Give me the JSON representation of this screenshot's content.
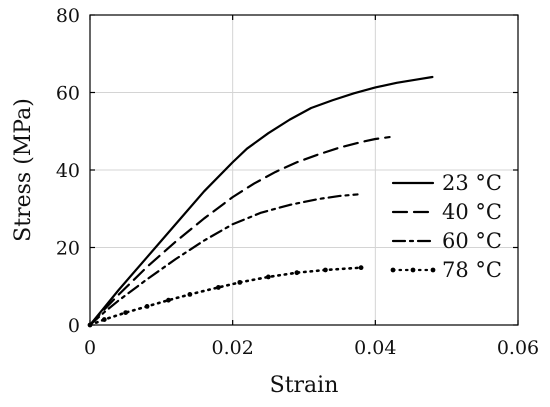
{
  "chart_data": {
    "type": "line",
    "title": "",
    "xlabel": "Strain",
    "ylabel": "Stress (MPa)",
    "xlim": [
      0,
      0.06
    ],
    "ylim": [
      0,
      80
    ],
    "xticks": [
      0,
      0.02,
      0.04,
      0.06
    ],
    "yticks": [
      0,
      20,
      40,
      60,
      80
    ],
    "xtick_labels": [
      "0",
      "0.02",
      "0.04",
      "0.06"
    ],
    "ytick_labels": [
      "0",
      "20",
      "40",
      "60",
      "80"
    ],
    "grid": true,
    "legend_position": "right",
    "series": [
      {
        "name": "23 °C",
        "style": "solid",
        "color": "#000000",
        "x": [
          0,
          0.002,
          0.004,
          0.008,
          0.012,
          0.016,
          0.02,
          0.022,
          0.025,
          0.028,
          0.031,
          0.034,
          0.037,
          0.04,
          0.043,
          0.046,
          0.048
        ],
        "y": [
          0,
          4.5,
          9,
          17.5,
          26,
          34.5,
          42,
          45.5,
          49.5,
          53,
          56,
          58,
          59.8,
          61.3,
          62.5,
          63.4,
          64
        ]
      },
      {
        "name": "40 °C",
        "style": "dashed",
        "color": "#000000",
        "x": [
          0,
          0.002,
          0.004,
          0.008,
          0.012,
          0.016,
          0.02,
          0.023,
          0.026,
          0.029,
          0.032,
          0.035,
          0.038,
          0.04,
          0.042
        ],
        "y": [
          0,
          4,
          7.8,
          15,
          21.5,
          27.5,
          33,
          36.5,
          39.5,
          42,
          44,
          45.8,
          47.2,
          48,
          48.5
        ]
      },
      {
        "name": "60 °C",
        "style": "dashdot",
        "color": "#000000",
        "x": [
          0,
          0.002,
          0.004,
          0.008,
          0.012,
          0.016,
          0.02,
          0.024,
          0.028,
          0.032,
          0.035,
          0.0375
        ],
        "y": [
          0,
          3.3,
          6.3,
          11.8,
          17,
          21.8,
          26,
          29,
          31,
          32.5,
          33.3,
          33.7
        ]
      },
      {
        "name": "78 °C",
        "style": "dotted",
        "color": "#000000",
        "x": [
          0,
          0.002,
          0.005,
          0.008,
          0.011,
          0.014,
          0.018,
          0.021,
          0.025,
          0.029,
          0.033,
          0.038
        ],
        "y": [
          0,
          1.4,
          3.2,
          4.8,
          6.4,
          7.9,
          9.7,
          11,
          12.4,
          13.5,
          14.2,
          14.8
        ]
      }
    ]
  }
}
